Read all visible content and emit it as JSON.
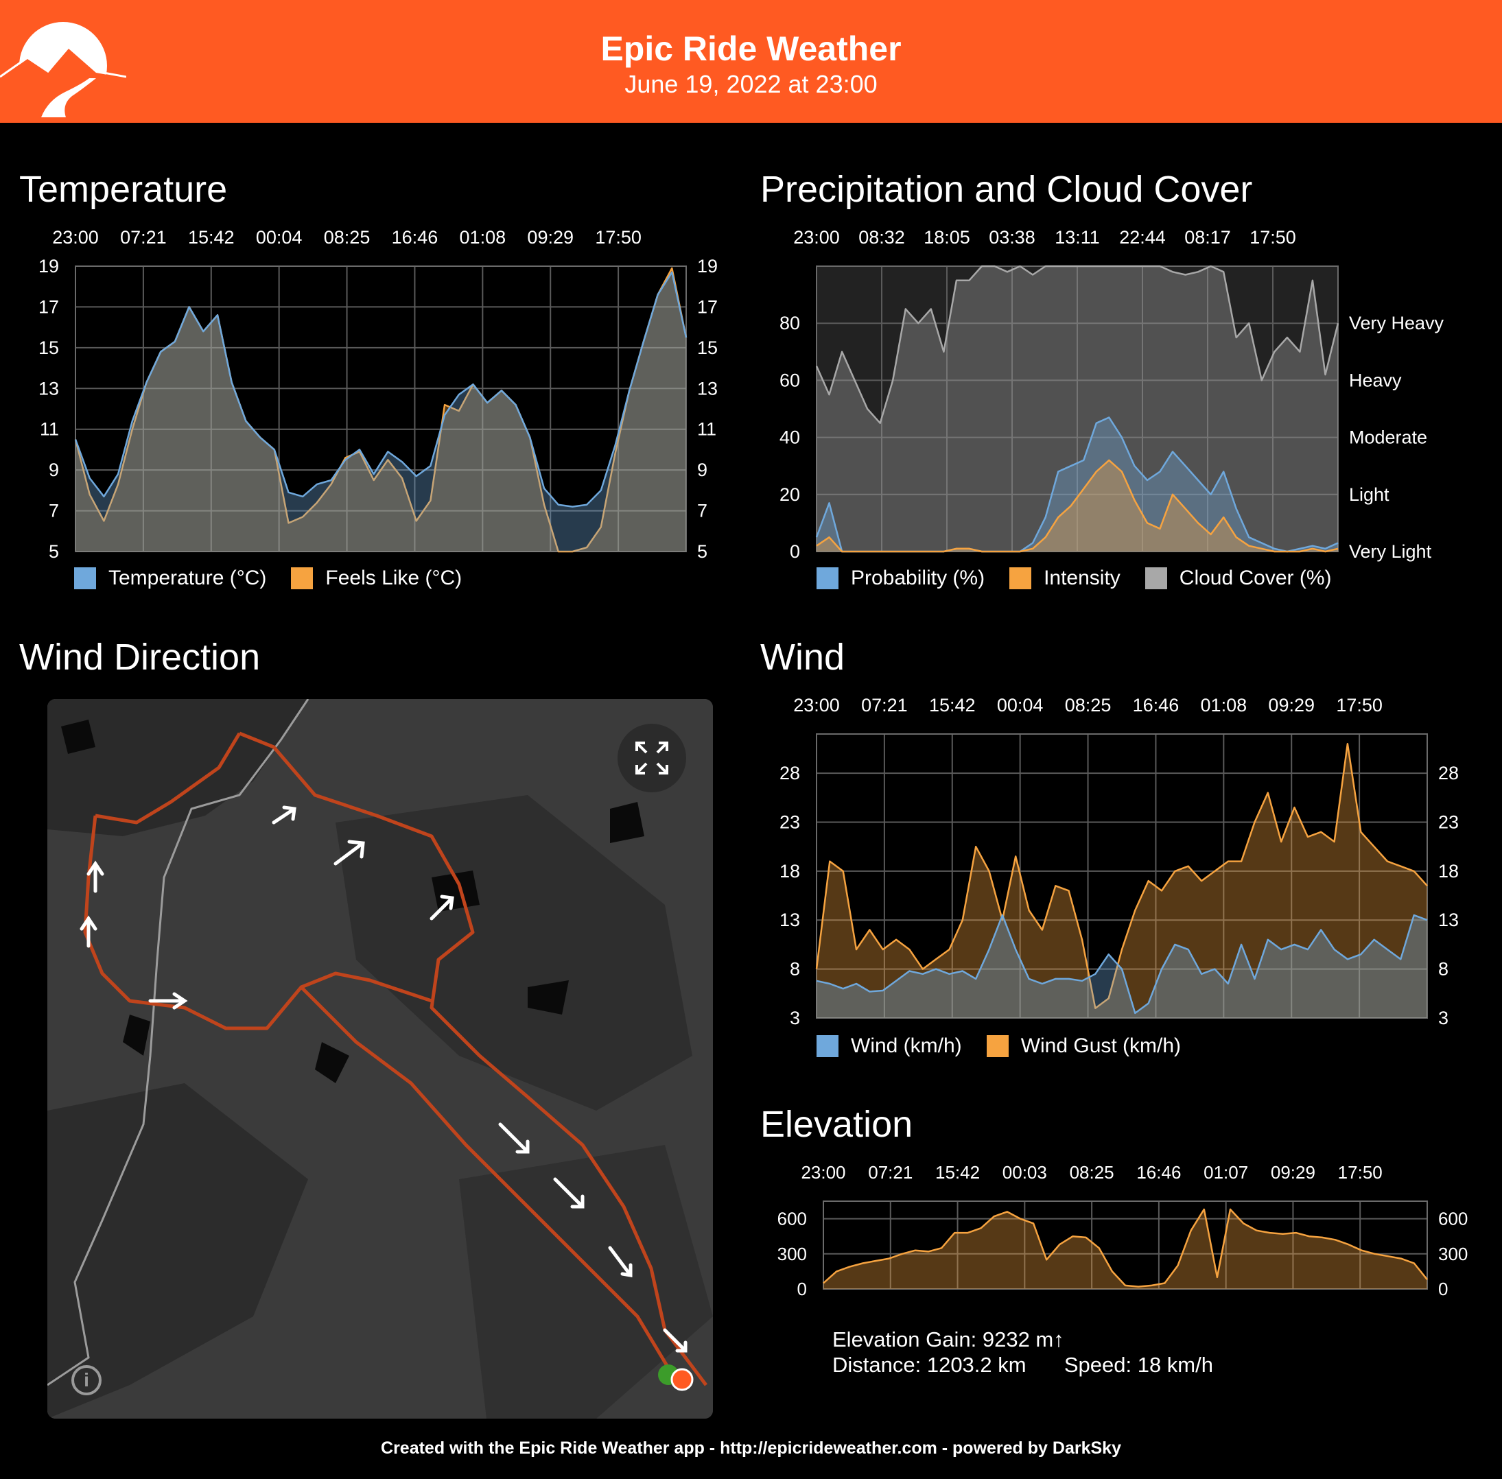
{
  "header": {
    "title": "Epic Ride Weather",
    "subtitle": "June 19, 2022 at 23:00",
    "brand_color": "#ff5a22"
  },
  "sections": {
    "temperature": "Temperature",
    "precipitation": "Precipitation and Cloud Cover",
    "wind_direction": "Wind Direction",
    "wind": "Wind",
    "elevation": "Elevation"
  },
  "map": {
    "expand_icon": "expand-icon",
    "info_icon": "info-icon",
    "info_label": "i",
    "route_color": "#c0441c",
    "start_marker_color": "#3c9c2a",
    "end_marker_color": "#ff5a22"
  },
  "stats": {
    "elevation_gain": "Elevation Gain: 9232 m↑",
    "distance": "Distance: 1203.2 km",
    "speed": "Speed: 18 km/h"
  },
  "footer": "Created with the Epic Ride Weather app - http://epicrideweather.com - powered by DarkSky",
  "chart_data": [
    {
      "id": "temperature",
      "type": "area",
      "x_ticks": [
        "23:00",
        "07:21",
        "15:42",
        "00:04",
        "08:25",
        "16:46",
        "01:08",
        "09:29",
        "17:50"
      ],
      "ylim": [
        5,
        19
      ],
      "y_ticks": [
        5,
        7,
        9,
        11,
        13,
        15,
        17,
        19
      ],
      "grid": true,
      "legend_position": "bottom",
      "series": [
        {
          "name": "Temperature (°C)",
          "color": "#6fa8dc",
          "values": [
            10.5,
            8.6,
            7.7,
            8.8,
            11.4,
            13.3,
            14.8,
            15.3,
            17.0,
            15.8,
            16.6,
            13.3,
            11.4,
            10.6,
            10.0,
            7.9,
            7.7,
            8.3,
            8.5,
            9.5,
            10.0,
            8.8,
            9.9,
            9.4,
            8.7,
            9.2,
            11.7,
            12.7,
            13.2,
            12.3,
            12.9,
            12.2,
            10.6,
            8.1,
            7.3,
            7.2,
            7.3,
            8.0,
            10.2,
            12.9,
            15.3,
            17.6,
            18.7,
            15.5
          ]
        },
        {
          "name": "Feels Like (°C)",
          "color": "#f6a340",
          "values": [
            10.5,
            7.8,
            6.5,
            8.3,
            11.0,
            13.3,
            14.8,
            15.3,
            17.0,
            15.8,
            16.6,
            13.3,
            11.4,
            10.6,
            10.0,
            6.4,
            6.7,
            7.4,
            8.3,
            9.6,
            9.9,
            8.5,
            9.5,
            8.6,
            6.5,
            7.5,
            12.2,
            11.9,
            13.2,
            12.3,
            12.9,
            12.2,
            10.6,
            7.3,
            5.0,
            5.0,
            5.2,
            6.2,
            9.8,
            12.9,
            15.3,
            17.6,
            18.9,
            15.5
          ]
        }
      ]
    },
    {
      "id": "precipitation",
      "type": "area",
      "x_ticks": [
        "23:00",
        "08:32",
        "18:05",
        "03:38",
        "13:11",
        "22:44",
        "08:17",
        "17:50"
      ],
      "ylim": [
        0,
        100
      ],
      "y_ticks": [
        0,
        20,
        40,
        60,
        80
      ],
      "right_axis_labels": [
        "Very Light",
        "Light",
        "Moderate",
        "Heavy",
        "Very Heavy"
      ],
      "grid": true,
      "legend_position": "bottom",
      "series": [
        {
          "name": "Probability (%)",
          "color": "#6fa8dc",
          "values": [
            5,
            17,
            0,
            0,
            0,
            0,
            0,
            0,
            0,
            0,
            0,
            1,
            1,
            0,
            0,
            0,
            0,
            3,
            12,
            28,
            30,
            32,
            45,
            47,
            40,
            30,
            25,
            28,
            35,
            30,
            25,
            20,
            28,
            15,
            5,
            3,
            1,
            0,
            1,
            2,
            1,
            3
          ]
        },
        {
          "name": "Intensity",
          "color": "#f6a340",
          "values": [
            2,
            5,
            0,
            0,
            0,
            0,
            0,
            0,
            0,
            0,
            0,
            1,
            1,
            0,
            0,
            0,
            0,
            1,
            5,
            12,
            16,
            22,
            28,
            32,
            28,
            18,
            10,
            8,
            20,
            15,
            10,
            6,
            12,
            5,
            2,
            1,
            0,
            0,
            0,
            1,
            0,
            1
          ]
        },
        {
          "name": "Cloud Cover (%)",
          "color": "#a8a8a8",
          "values": [
            65,
            55,
            70,
            60,
            50,
            45,
            60,
            85,
            80,
            85,
            70,
            95,
            95,
            100,
            100,
            98,
            100,
            97,
            100,
            100,
            100,
            100,
            100,
            100,
            100,
            100,
            100,
            100,
            98,
            97,
            98,
            100,
            98,
            75,
            80,
            60,
            70,
            75,
            70,
            95,
            62,
            80
          ]
        }
      ]
    },
    {
      "id": "wind",
      "type": "area",
      "x_ticks": [
        "23:00",
        "07:21",
        "15:42",
        "00:04",
        "08:25",
        "16:46",
        "01:08",
        "09:29",
        "17:50"
      ],
      "ylim": [
        3,
        32
      ],
      "y_ticks": [
        3,
        8,
        13,
        18,
        23,
        28
      ],
      "grid": true,
      "legend_position": "bottom",
      "series": [
        {
          "name": "Wind (km/h)",
          "color": "#6fa8dc",
          "values": [
            6.8,
            6.5,
            6.0,
            6.5,
            5.7,
            5.8,
            6.8,
            7.8,
            7.5,
            8.0,
            7.5,
            7.8,
            7.0,
            10.0,
            13.5,
            10.0,
            7.0,
            6.5,
            7.0,
            7.0,
            6.8,
            7.5,
            9.5,
            8.0,
            3.5,
            4.5,
            8.0,
            10.5,
            10.0,
            7.5,
            8.0,
            6.5,
            10.5,
            7.0,
            11.0,
            10.0,
            10.5,
            10.0,
            12.0,
            10.0,
            9.0,
            9.5,
            11.0,
            10.0,
            9.0,
            13.5,
            13.0
          ]
        },
        {
          "name": "Wind Gust (km/h)",
          "color": "#f6a340",
          "values": [
            8.0,
            19.0,
            18.0,
            10.0,
            12.0,
            10.0,
            11.0,
            10.0,
            8.0,
            9.0,
            10.0,
            13.0,
            20.5,
            18.0,
            13.0,
            19.5,
            14.0,
            12.0,
            16.5,
            16.0,
            11.0,
            4.0,
            5.0,
            10.0,
            14.0,
            17.0,
            16.0,
            18.0,
            18.5,
            17.0,
            18.0,
            19.0,
            19.0,
            23.0,
            26.0,
            21.0,
            24.5,
            21.5,
            22.0,
            21.0,
            31.0,
            22.0,
            20.5,
            19.0,
            18.5,
            18.0,
            16.5
          ]
        }
      ]
    },
    {
      "id": "elevation",
      "type": "area",
      "x_ticks": [
        "23:00",
        "07:21",
        "15:42",
        "00:03",
        "08:25",
        "16:46",
        "01:07",
        "09:29",
        "17:50"
      ],
      "ylim": [
        0,
        750
      ],
      "y_ticks": [
        0,
        300,
        600
      ],
      "grid": true,
      "series": [
        {
          "name": "",
          "color": "#f6a340",
          "values": [
            50,
            150,
            190,
            220,
            240,
            260,
            300,
            330,
            320,
            350,
            480,
            480,
            520,
            620,
            660,
            600,
            560,
            250,
            380,
            450,
            440,
            350,
            150,
            30,
            20,
            30,
            50,
            200,
            500,
            680,
            100,
            680,
            560,
            500,
            480,
            470,
            480,
            450,
            440,
            420,
            380,
            330,
            300,
            280,
            260,
            220,
            80
          ]
        }
      ]
    }
  ]
}
